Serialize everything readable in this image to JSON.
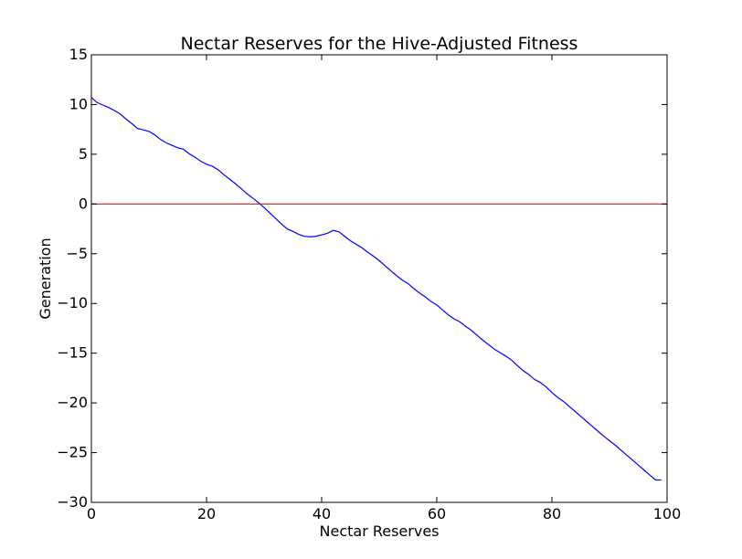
{
  "chart_data": {
    "type": "line",
    "title": "Nectar Reserves for the Hive-Adjusted Fitness",
    "xlabel": "Nectar Reserves",
    "ylabel": "Generation",
    "xlim": [
      0,
      100
    ],
    "ylim": [
      -30,
      15
    ],
    "xticks": [
      0,
      20,
      40,
      60,
      80,
      100
    ],
    "yticks": [
      15,
      10,
      5,
      0,
      -5,
      -10,
      -15,
      -20,
      -25,
      -30
    ],
    "xtick_labels": [
      "0",
      "20",
      "40",
      "60",
      "80",
      "100"
    ],
    "ytick_labels": [
      "15",
      "10",
      "5",
      "0",
      "−5",
      "−10",
      "−15",
      "−20",
      "−25",
      "−30"
    ],
    "grid": false,
    "legend": null,
    "series": [
      {
        "color": "#0000ff",
        "x": [
          0,
          1,
          2,
          3,
          4,
          5,
          6,
          7,
          8,
          9,
          10,
          11,
          12,
          13,
          14,
          15,
          16,
          17,
          18,
          19,
          20,
          21,
          22,
          23,
          24,
          25,
          26,
          27,
          28,
          29,
          30,
          31,
          32,
          33,
          34,
          35,
          36,
          37,
          38,
          39,
          40,
          41,
          42,
          43,
          44,
          45,
          46,
          47,
          48,
          49,
          50,
          51,
          52,
          53,
          54,
          55,
          56,
          57,
          58,
          59,
          60,
          61,
          62,
          63,
          64,
          65,
          66,
          67,
          68,
          69,
          70,
          71,
          72,
          73,
          74,
          75,
          76,
          77,
          78,
          79,
          80,
          81,
          82,
          83,
          84,
          85,
          86,
          87,
          88,
          89,
          90,
          91,
          92,
          93,
          94,
          95,
          96,
          97,
          98,
          99
        ],
        "values": [
          10.7,
          10.2,
          9.95,
          9.7,
          9.4,
          9.05,
          8.55,
          8.1,
          7.6,
          7.45,
          7.3,
          6.95,
          6.5,
          6.15,
          5.9,
          5.65,
          5.5,
          5.05,
          4.7,
          4.3,
          4.0,
          3.8,
          3.45,
          2.95,
          2.5,
          2.05,
          1.55,
          1.05,
          0.6,
          0.15,
          -0.35,
          -0.9,
          -1.45,
          -2.0,
          -2.5,
          -2.75,
          -3.05,
          -3.25,
          -3.3,
          -3.25,
          -3.1,
          -2.95,
          -2.65,
          -2.8,
          -3.25,
          -3.7,
          -4.05,
          -4.4,
          -4.85,
          -5.25,
          -5.7,
          -6.2,
          -6.7,
          -7.2,
          -7.65,
          -8.0,
          -8.5,
          -8.95,
          -9.35,
          -9.8,
          -10.15,
          -10.65,
          -11.15,
          -11.55,
          -11.85,
          -12.3,
          -12.7,
          -13.2,
          -13.7,
          -14.15,
          -14.6,
          -14.95,
          -15.3,
          -15.7,
          -16.25,
          -16.75,
          -17.15,
          -17.65,
          -17.95,
          -18.4,
          -18.95,
          -19.45,
          -19.85,
          -20.35,
          -20.85,
          -21.35,
          -21.85,
          -22.35,
          -22.85,
          -23.35,
          -23.8,
          -24.25,
          -24.75,
          -25.25,
          -25.75,
          -26.25,
          -26.75,
          -27.25,
          -27.75,
          -27.75
        ]
      },
      {
        "color": "#ff0000",
        "x": [
          0,
          100
        ],
        "values": [
          0,
          0
        ]
      }
    ]
  }
}
